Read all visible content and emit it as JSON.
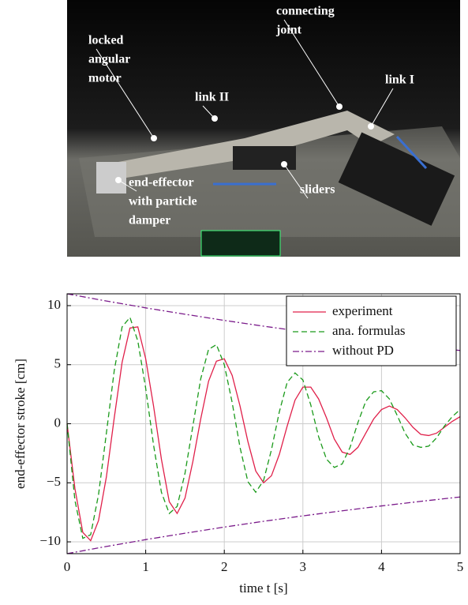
{
  "photo": {
    "labels": [
      {
        "lines": [
          "locked",
          "angular",
          "motor"
        ]
      },
      {
        "lines": [
          "link II"
        ]
      },
      {
        "lines": [
          "connecting",
          "joint"
        ]
      },
      {
        "lines": [
          "link I"
        ]
      },
      {
        "lines": [
          "sliders"
        ]
      },
      {
        "lines": [
          "end-effector",
          "with particle",
          "damper"
        ]
      }
    ]
  },
  "chart_data": {
    "type": "line",
    "x_label": "time t [s]",
    "y_label": "end-effector stroke [cm]",
    "x": [
      0,
      0.1,
      0.2,
      0.3,
      0.4,
      0.5,
      0.6,
      0.7,
      0.8,
      0.9,
      1,
      1.1,
      1.2,
      1.3,
      1.4,
      1.5,
      1.6,
      1.7,
      1.8,
      1.9,
      2,
      2.1,
      2.2,
      2.3,
      2.4,
      2.5,
      2.6,
      2.7,
      2.8,
      2.9,
      3,
      3.1,
      3.2,
      3.3,
      3.4,
      3.5,
      3.6,
      3.7,
      3.8,
      3.9,
      4,
      4.1,
      4.2,
      4.3,
      4.4,
      4.5,
      4.6,
      4.7,
      4.8,
      4.9,
      5
    ],
    "series": [
      {
        "name": "experiment",
        "color": "#e0204a",
        "dash": "solid",
        "values": [
          0,
          -5.5,
          -9.2,
          -9.9,
          -8.2,
          -4.5,
          0.5,
          5.2,
          8.1,
          8.2,
          5.5,
          1.5,
          -3,
          -6.6,
          -7.6,
          -6.3,
          -3.2,
          0.4,
          3.6,
          5.3,
          5.5,
          4.1,
          1.5,
          -1.5,
          -4,
          -5,
          -4.4,
          -2.6,
          -0.2,
          2,
          3.1,
          3.1,
          2.1,
          0.5,
          -1.3,
          -2.4,
          -2.6,
          -2,
          -0.8,
          0.4,
          1.2,
          1.5,
          1.2,
          0.5,
          -0.3,
          -0.9,
          -1,
          -0.8,
          -0.3,
          0.2,
          0.6
        ]
      },
      {
        "name": "ana. formulas",
        "color": "#1a9a1a",
        "dash": "dashed",
        "values": [
          0,
          -6.5,
          -9.7,
          -9.4,
          -6,
          -0.8,
          4.5,
          8.2,
          9,
          7,
          3,
          -1.8,
          -5.8,
          -7.6,
          -7,
          -4.2,
          -0.2,
          3.8,
          6.3,
          6.7,
          5,
          1.8,
          -2,
          -4.9,
          -5.8,
          -4.8,
          -2.2,
          1,
          3.5,
          4.3,
          3.7,
          1.6,
          -1.1,
          -3,
          -3.7,
          -3.4,
          -2,
          0.1,
          1.9,
          2.7,
          2.8,
          2.1,
          0.7,
          -0.8,
          -1.8,
          -2,
          -1.9,
          -1.2,
          -0.2,
          0.6,
          1.2
        ]
      },
      {
        "name": "without PD",
        "color": "#7a1a8a",
        "dash": "dashdot",
        "x": [
          0,
          0.5,
          1,
          1.5,
          2,
          2.5,
          3,
          3.5,
          4,
          4.5,
          5,
          null,
          0,
          0.5,
          1,
          1.5,
          2,
          2.5,
          3,
          3.5,
          4,
          4.5,
          5
        ],
        "values": [
          11,
          10.39,
          9.81,
          9.27,
          8.75,
          8.26,
          7.8,
          7.37,
          6.96,
          6.57,
          6.2,
          null,
          -11,
          -10.39,
          -9.81,
          -9.27,
          -8.75,
          -8.26,
          -7.8,
          -7.37,
          -6.96,
          -6.57,
          -6.2
        ]
      }
    ],
    "xlim": [
      0,
      5
    ],
    "ylim": [
      -11,
      11
    ],
    "xticks": [
      0,
      1,
      2,
      3,
      4,
      5
    ],
    "yticks": [
      {
        "value": -10,
        "label": "−10"
      },
      {
        "value": -5,
        "label": "−5"
      },
      0,
      5,
      10
    ],
    "grid": true,
    "legend": "top-right"
  }
}
